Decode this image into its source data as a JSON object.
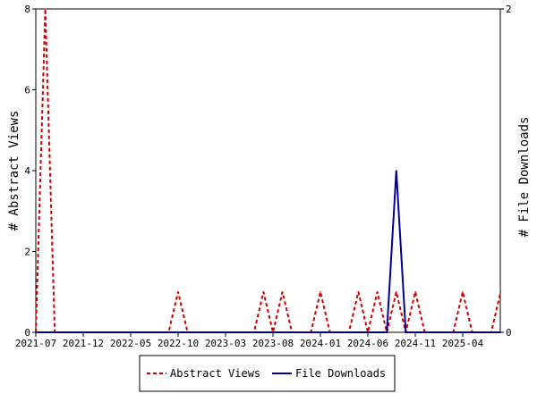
{
  "chart_data": {
    "type": "line",
    "ylabel_left": "# Abstract Views",
    "ylabel_right": "# File Downloads",
    "x_tick_labels": [
      "2021-07",
      "2021-12",
      "2022-05",
      "2022-10",
      "2023-03",
      "2023-08",
      "2024-01",
      "2024-06",
      "2024-11",
      "2025-04"
    ],
    "y_left_ticks": [
      "0",
      "2",
      "4",
      "6",
      "8"
    ],
    "y_right_ticks": [
      "0",
      "2"
    ],
    "ylim_left": [
      0,
      8
    ],
    "ylim_right": [
      0,
      2
    ],
    "grid": false,
    "legend_position": "bottom",
    "x": [
      "2021-07",
      "2021-08",
      "2021-09",
      "2021-10",
      "2021-11",
      "2021-12",
      "2022-01",
      "2022-02",
      "2022-03",
      "2022-04",
      "2022-05",
      "2022-06",
      "2022-07",
      "2022-08",
      "2022-09",
      "2022-10",
      "2022-11",
      "2022-12",
      "2023-01",
      "2023-02",
      "2023-03",
      "2023-04",
      "2023-05",
      "2023-06",
      "2023-07",
      "2023-08",
      "2023-09",
      "2023-10",
      "2023-11",
      "2023-12",
      "2024-01",
      "2024-02",
      "2024-03",
      "2024-04",
      "2024-05",
      "2024-06",
      "2024-07",
      "2024-08",
      "2024-09",
      "2024-10",
      "2024-11",
      "2024-12",
      "2025-01",
      "2025-02",
      "2025-03",
      "2025-04",
      "2025-05",
      "2025-06",
      "2025-07",
      "2025-08"
    ],
    "series": [
      {
        "name": "Abstract Views",
        "axis": "left",
        "color": "#cc0000",
        "style": "dashed",
        "values": [
          0,
          8,
          0,
          0,
          0,
          0,
          0,
          0,
          0,
          0,
          0,
          0,
          0,
          0,
          0,
          1,
          0,
          0,
          0,
          0,
          0,
          0,
          0,
          0,
          1,
          0,
          1,
          0,
          0,
          0,
          1,
          0,
          0,
          0,
          1,
          0,
          1,
          0,
          1,
          0,
          1,
          0,
          0,
          0,
          0,
          1,
          0,
          0,
          0,
          1
        ]
      },
      {
        "name": "File Downloads",
        "axis": "right",
        "color": "#000099",
        "style": "solid",
        "values": [
          0,
          0,
          0,
          0,
          0,
          0,
          0,
          0,
          0,
          0,
          0,
          0,
          0,
          0,
          0,
          0,
          0,
          0,
          0,
          0,
          0,
          0,
          0,
          0,
          0,
          0,
          0,
          0,
          0,
          0,
          0,
          0,
          0,
          0,
          0,
          0,
          0,
          0,
          1,
          0,
          0,
          0,
          0,
          0,
          0,
          0,
          0,
          0,
          0,
          0
        ]
      }
    ]
  }
}
